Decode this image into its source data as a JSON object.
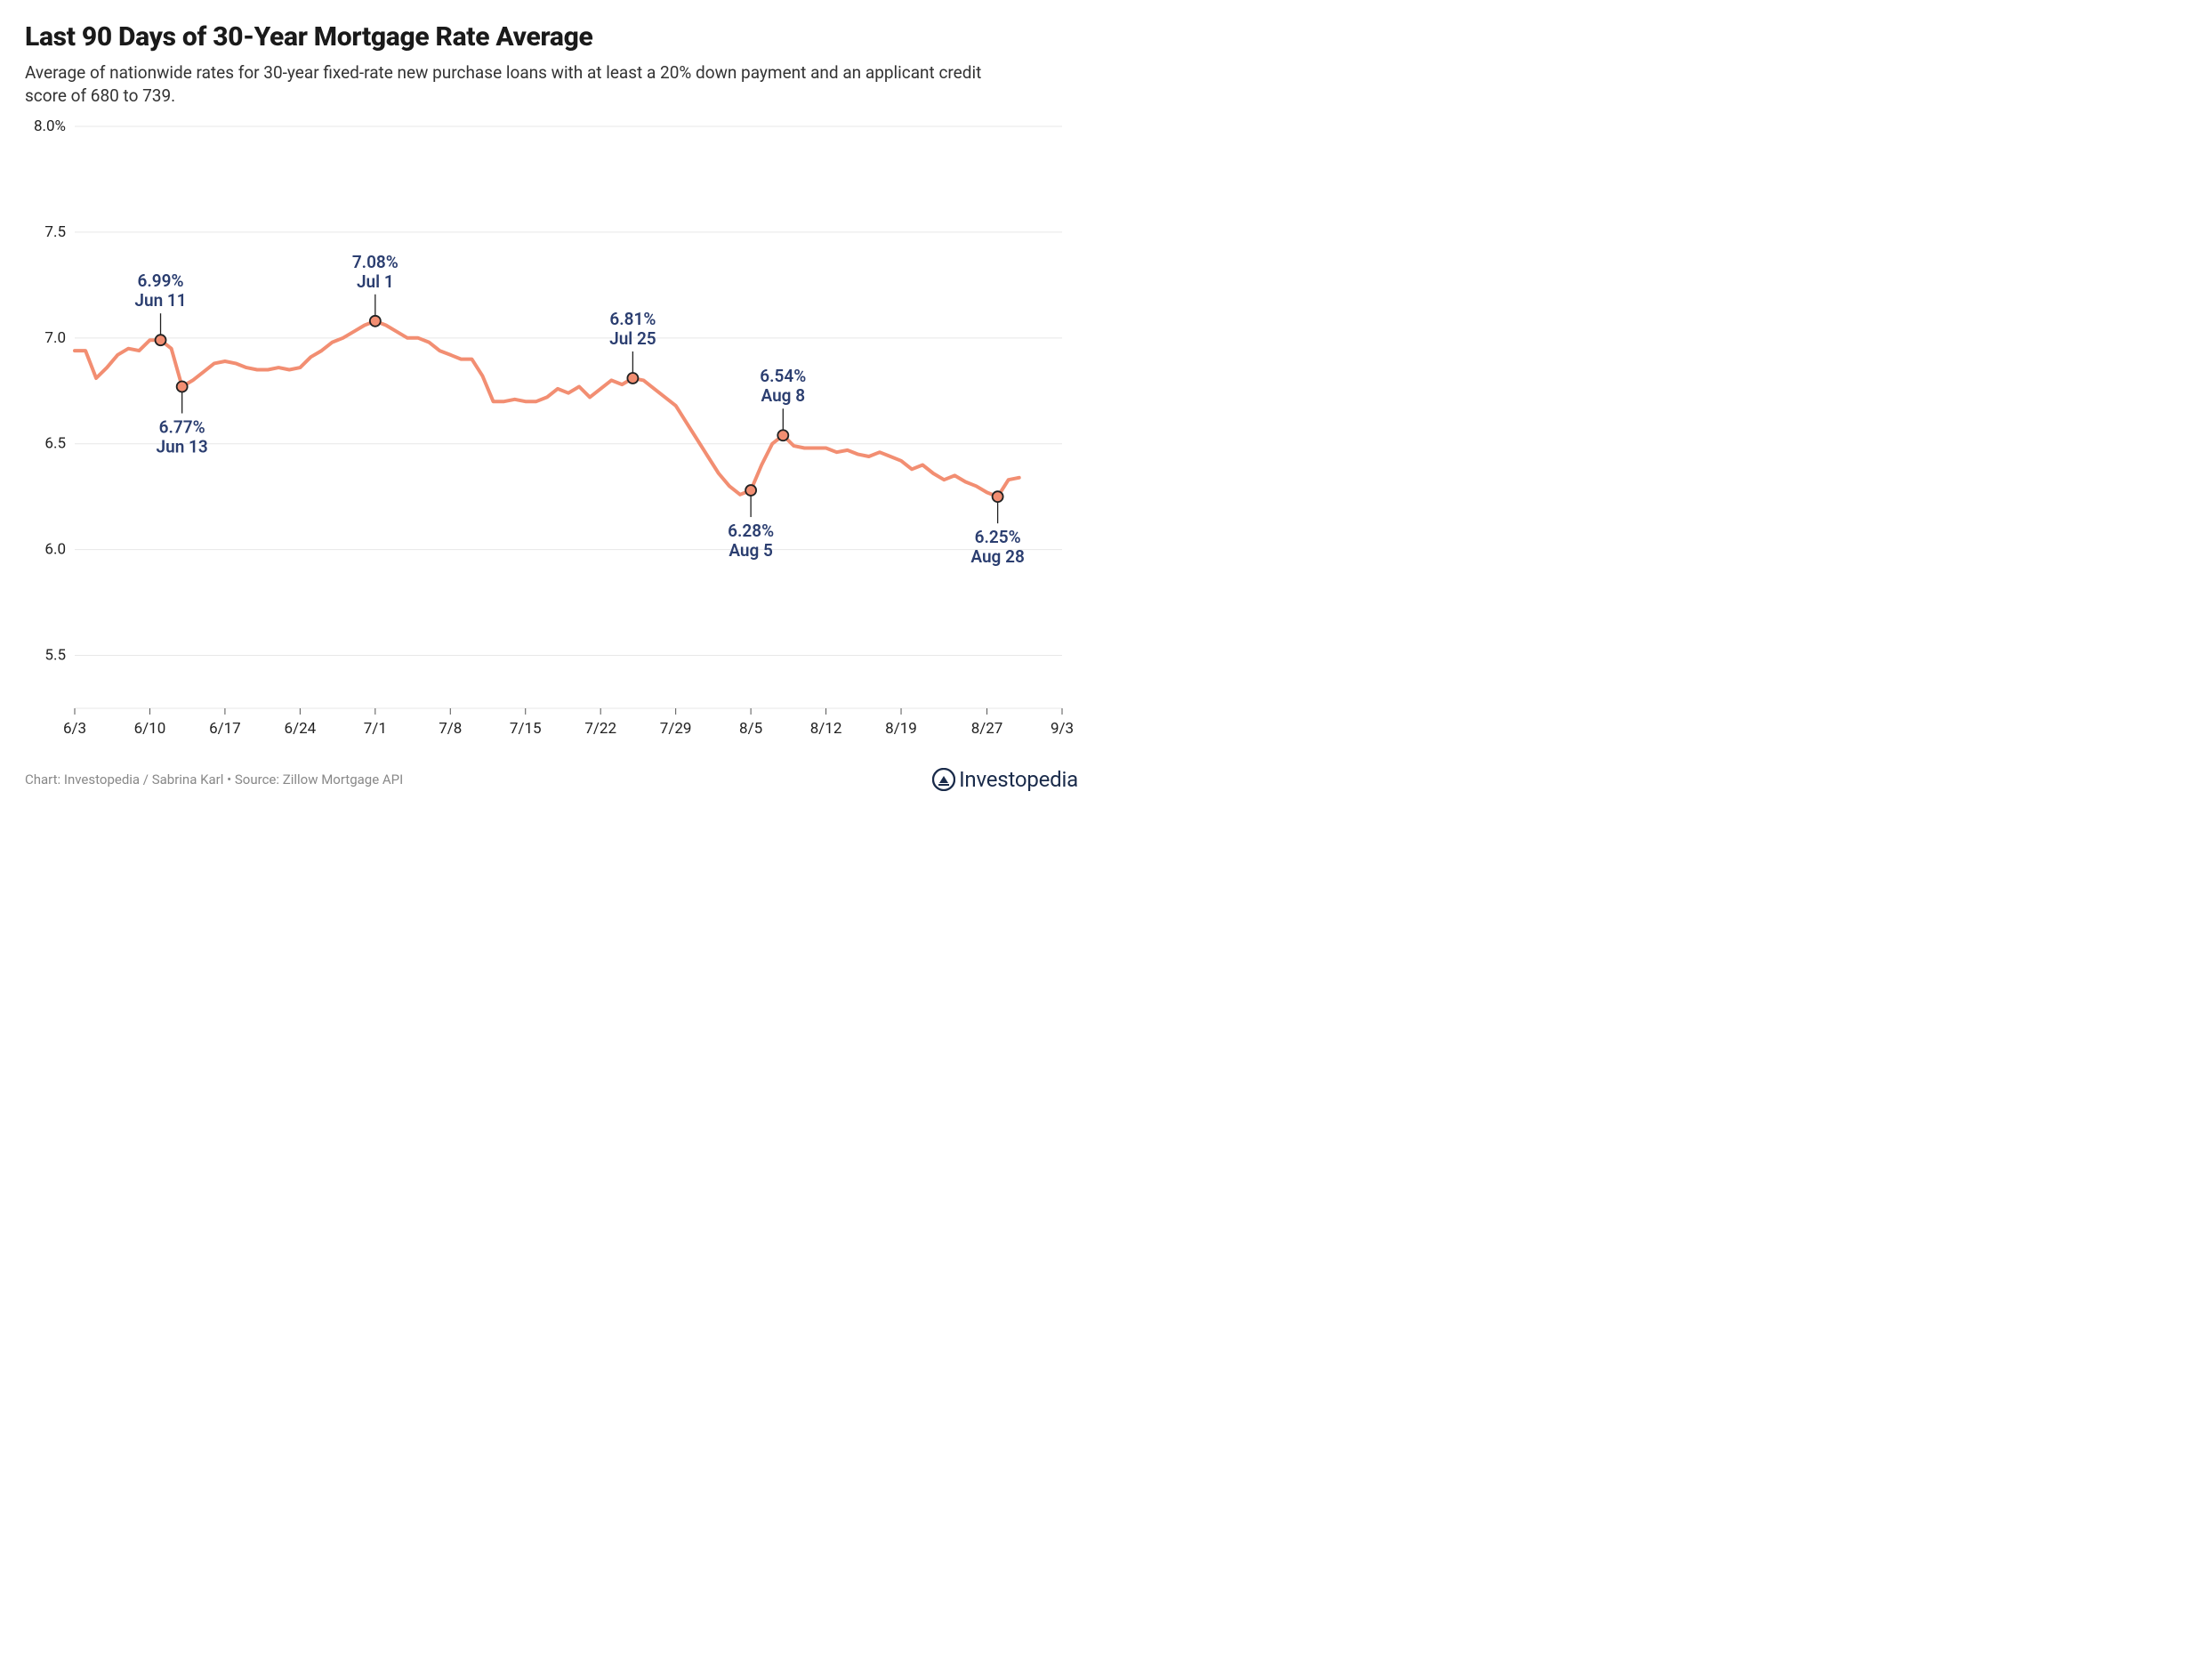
{
  "title": "Last 90 Days of 30-Year Mortgage Rate Average",
  "subtitle": "Average of nationwide rates for 30-year fixed-rate new purchase loans with at least a 20% down payment and an applicant credit score of 680 to 739.",
  "credit": "Chart: Investopedia / Sabrina Karl • Source: Zillow Mortgage API",
  "logo_text": "Investopedia",
  "chart": {
    "type": "line",
    "background_color": "#ffffff",
    "grid_color": "#e7e7e7",
    "line_color": "#f28e72",
    "line_width": 4,
    "marker_stroke": "#222222",
    "marker_fill": "#f28e72",
    "marker_radius": 6,
    "annotation_color": "#2b3e70",
    "annotation_fontsize": 19,
    "tick_fontsize": 17,
    "tick_color": "#222222",
    "ylim": [
      5.25,
      8.0
    ],
    "yticks": [
      5.5,
      6.0,
      6.5,
      7.0,
      7.5,
      8.0
    ],
    "ytick_labels": [
      "5.5",
      "6.0",
      "6.5",
      "7.0",
      "7.5",
      "8.0%"
    ],
    "x_start_day": 0,
    "x_end_day": 92,
    "xticks_days": [
      0,
      7,
      14,
      21,
      28,
      35,
      42,
      49,
      56,
      63,
      70,
      77,
      85,
      92
    ],
    "xtick_labels": [
      "6/3",
      "6/10",
      "6/17",
      "6/24",
      "7/1",
      "7/8",
      "7/15",
      "7/22",
      "7/29",
      "8/5",
      "8/12",
      "8/19",
      "8/27",
      "9/3"
    ],
    "series": [
      {
        "d": 0,
        "v": 6.94
      },
      {
        "d": 1,
        "v": 6.94
      },
      {
        "d": 2,
        "v": 6.81
      },
      {
        "d": 3,
        "v": 6.86
      },
      {
        "d": 4,
        "v": 6.92
      },
      {
        "d": 5,
        "v": 6.95
      },
      {
        "d": 6,
        "v": 6.94
      },
      {
        "d": 7,
        "v": 6.99
      },
      {
        "d": 8,
        "v": 6.99
      },
      {
        "d": 9,
        "v": 6.95
      },
      {
        "d": 10,
        "v": 6.77
      },
      {
        "d": 11,
        "v": 6.8
      },
      {
        "d": 12,
        "v": 6.84
      },
      {
        "d": 13,
        "v": 6.88
      },
      {
        "d": 14,
        "v": 6.89
      },
      {
        "d": 15,
        "v": 6.88
      },
      {
        "d": 16,
        "v": 6.86
      },
      {
        "d": 17,
        "v": 6.85
      },
      {
        "d": 18,
        "v": 6.85
      },
      {
        "d": 19,
        "v": 6.86
      },
      {
        "d": 20,
        "v": 6.85
      },
      {
        "d": 21,
        "v": 6.86
      },
      {
        "d": 22,
        "v": 6.91
      },
      {
        "d": 23,
        "v": 6.94
      },
      {
        "d": 24,
        "v": 6.98
      },
      {
        "d": 25,
        "v": 7.0
      },
      {
        "d": 26,
        "v": 7.03
      },
      {
        "d": 27,
        "v": 7.06
      },
      {
        "d": 28,
        "v": 7.08
      },
      {
        "d": 29,
        "v": 7.06
      },
      {
        "d": 30,
        "v": 7.03
      },
      {
        "d": 31,
        "v": 7.0
      },
      {
        "d": 32,
        "v": 7.0
      },
      {
        "d": 33,
        "v": 6.98
      },
      {
        "d": 34,
        "v": 6.94
      },
      {
        "d": 35,
        "v": 6.92
      },
      {
        "d": 36,
        "v": 6.9
      },
      {
        "d": 37,
        "v": 6.9
      },
      {
        "d": 38,
        "v": 6.82
      },
      {
        "d": 39,
        "v": 6.7
      },
      {
        "d": 40,
        "v": 6.7
      },
      {
        "d": 41,
        "v": 6.71
      },
      {
        "d": 42,
        "v": 6.7
      },
      {
        "d": 43,
        "v": 6.7
      },
      {
        "d": 44,
        "v": 6.72
      },
      {
        "d": 45,
        "v": 6.76
      },
      {
        "d": 46,
        "v": 6.74
      },
      {
        "d": 47,
        "v": 6.77
      },
      {
        "d": 48,
        "v": 6.72
      },
      {
        "d": 49,
        "v": 6.76
      },
      {
        "d": 50,
        "v": 6.8
      },
      {
        "d": 51,
        "v": 6.78
      },
      {
        "d": 52,
        "v": 6.81
      },
      {
        "d": 53,
        "v": 6.8
      },
      {
        "d": 54,
        "v": 6.76
      },
      {
        "d": 55,
        "v": 6.72
      },
      {
        "d": 56,
        "v": 6.68
      },
      {
        "d": 57,
        "v": 6.6
      },
      {
        "d": 58,
        "v": 6.52
      },
      {
        "d": 59,
        "v": 6.44
      },
      {
        "d": 60,
        "v": 6.36
      },
      {
        "d": 61,
        "v": 6.3
      },
      {
        "d": 62,
        "v": 6.26
      },
      {
        "d": 63,
        "v": 6.28
      },
      {
        "d": 64,
        "v": 6.4
      },
      {
        "d": 65,
        "v": 6.5
      },
      {
        "d": 66,
        "v": 6.54
      },
      {
        "d": 67,
        "v": 6.49
      },
      {
        "d": 68,
        "v": 6.48
      },
      {
        "d": 69,
        "v": 6.48
      },
      {
        "d": 70,
        "v": 6.48
      },
      {
        "d": 71,
        "v": 6.46
      },
      {
        "d": 72,
        "v": 6.47
      },
      {
        "d": 73,
        "v": 6.45
      },
      {
        "d": 74,
        "v": 6.44
      },
      {
        "d": 75,
        "v": 6.46
      },
      {
        "d": 76,
        "v": 6.44
      },
      {
        "d": 77,
        "v": 6.42
      },
      {
        "d": 78,
        "v": 6.38
      },
      {
        "d": 79,
        "v": 6.4
      },
      {
        "d": 80,
        "v": 6.36
      },
      {
        "d": 81,
        "v": 6.33
      },
      {
        "d": 82,
        "v": 6.35
      },
      {
        "d": 83,
        "v": 6.32
      },
      {
        "d": 84,
        "v": 6.3
      },
      {
        "d": 85,
        "v": 6.27
      },
      {
        "d": 86,
        "v": 6.25
      },
      {
        "d": 87,
        "v": 6.33
      },
      {
        "d": 88,
        "v": 6.34
      }
    ],
    "annotations": [
      {
        "d": 8,
        "v": 6.99,
        "pct": "6.99%",
        "date": "Jun 11",
        "pos": "above"
      },
      {
        "d": 10,
        "v": 6.77,
        "pct": "6.77%",
        "date": "Jun 13",
        "pos": "below"
      },
      {
        "d": 28,
        "v": 7.08,
        "pct": "7.08%",
        "date": "Jul 1",
        "pos": "above"
      },
      {
        "d": 52,
        "v": 6.81,
        "pct": "6.81%",
        "date": "Jul 25",
        "pos": "above"
      },
      {
        "d": 63,
        "v": 6.28,
        "pct": "6.28%",
        "date": "Aug 5",
        "pos": "below"
      },
      {
        "d": 66,
        "v": 6.54,
        "pct": "6.54%",
        "date": "Aug 8",
        "pos": "above"
      },
      {
        "d": 86,
        "v": 6.25,
        "pct": "6.25%",
        "date": "Aug 28",
        "pos": "below"
      }
    ]
  }
}
